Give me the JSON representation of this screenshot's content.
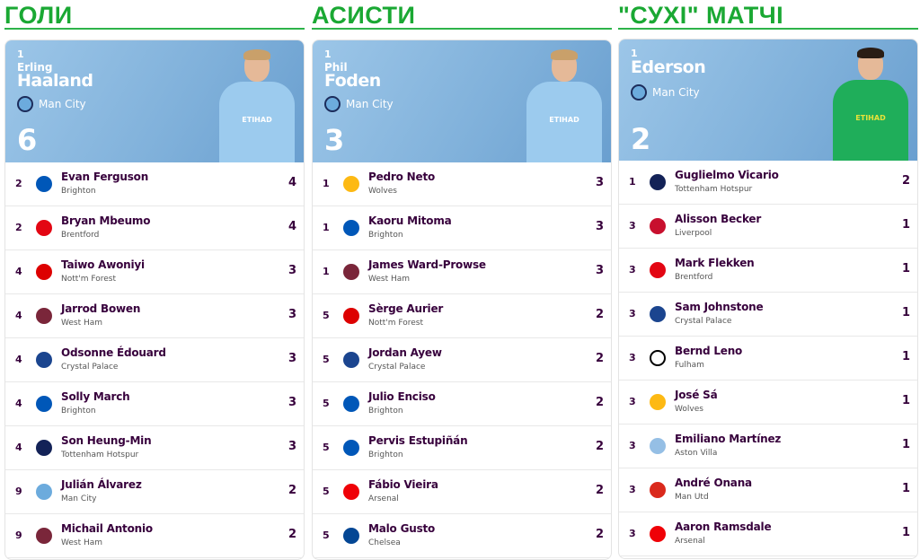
{
  "colors": {
    "title": "#1aa833",
    "hero": "#7fb0da",
    "text": "#37003c"
  },
  "panels": [
    {
      "title": "ГОЛИ",
      "leader": {
        "rank": "1",
        "first": "Erling",
        "last": "Haaland",
        "club": "Man City",
        "value": "6",
        "kit": "#9ccbee",
        "kit_text": "ETIHAD"
      },
      "rows": [
        {
          "rank": "2",
          "name": "Evan Ferguson",
          "club": "Brighton",
          "value": "4",
          "badge": "#0057b8"
        },
        {
          "rank": "2",
          "name": "Bryan Mbeumo",
          "club": "Brentford",
          "value": "4",
          "badge": "#e30613"
        },
        {
          "rank": "4",
          "name": "Taiwo Awoniyi",
          "club": "Nott'm Forest",
          "value": "3",
          "badge": "#dd0000"
        },
        {
          "rank": "4",
          "name": "Jarrod Bowen",
          "club": "West Ham",
          "value": "3",
          "badge": "#7a263a"
        },
        {
          "rank": "4",
          "name": "Odsonne Édouard",
          "club": "Crystal Palace",
          "value": "3",
          "badge": "#1b458f"
        },
        {
          "rank": "4",
          "name": "Solly March",
          "club": "Brighton",
          "value": "3",
          "badge": "#0057b8"
        },
        {
          "rank": "4",
          "name": "Son Heung-Min",
          "club": "Tottenham Hotspur",
          "value": "3",
          "badge": "#132257"
        },
        {
          "rank": "9",
          "name": "Julián Álvarez",
          "club": "Man City",
          "value": "2",
          "badge": "#6cabdd"
        },
        {
          "rank": "9",
          "name": "Michail Antonio",
          "club": "West Ham",
          "value": "2",
          "badge": "#7a263a"
        }
      ]
    },
    {
      "title": "АСИСТИ",
      "leader": {
        "rank": "1",
        "first": "Phil",
        "last": "Foden",
        "club": "Man City",
        "value": "3",
        "kit": "#9ccbee",
        "kit_text": "ETIHAD"
      },
      "rows": [
        {
          "rank": "1",
          "name": "Pedro Neto",
          "club": "Wolves",
          "value": "3",
          "badge": "#fdb913"
        },
        {
          "rank": "1",
          "name": "Kaoru Mitoma",
          "club": "Brighton",
          "value": "3",
          "badge": "#0057b8"
        },
        {
          "rank": "1",
          "name": "James Ward-Prowse",
          "club": "West Ham",
          "value": "3",
          "badge": "#7a263a"
        },
        {
          "rank": "5",
          "name": "Sèrge Aurier",
          "club": "Nott'm Forest",
          "value": "2",
          "badge": "#dd0000"
        },
        {
          "rank": "5",
          "name": "Jordan Ayew",
          "club": "Crystal Palace",
          "value": "2",
          "badge": "#1b458f"
        },
        {
          "rank": "5",
          "name": "Julio Enciso",
          "club": "Brighton",
          "value": "2",
          "badge": "#0057b8"
        },
        {
          "rank": "5",
          "name": "Pervis Estupiñán",
          "club": "Brighton",
          "value": "2",
          "badge": "#0057b8"
        },
        {
          "rank": "5",
          "name": "Fábio Vieira",
          "club": "Arsenal",
          "value": "2",
          "badge": "#ef0107"
        },
        {
          "rank": "5",
          "name": "Malo Gusto",
          "club": "Chelsea",
          "value": "2",
          "badge": "#034694"
        }
      ]
    },
    {
      "title": "\"СУХІ\" МАТЧІ",
      "leader": {
        "rank": "1",
        "first": "",
        "last": "Ederson",
        "club": "Man City",
        "value": "2",
        "kit": "#1fae5a",
        "kit_text": "ETIHAD"
      },
      "rows": [
        {
          "rank": "1",
          "name": "Guglielmo Vicario",
          "club": "Tottenham Hotspur",
          "value": "2",
          "badge": "#132257"
        },
        {
          "rank": "3",
          "name": "Alisson Becker",
          "club": "Liverpool",
          "value": "1",
          "badge": "#c8102e"
        },
        {
          "rank": "3",
          "name": "Mark Flekken",
          "club": "Brentford",
          "value": "1",
          "badge": "#e30613"
        },
        {
          "rank": "3",
          "name": "Sam Johnstone",
          "club": "Crystal Palace",
          "value": "1",
          "badge": "#1b458f"
        },
        {
          "rank": "3",
          "name": "Bernd Leno",
          "club": "Fulham",
          "value": "1",
          "badge": "#000000"
        },
        {
          "rank": "3",
          "name": "José Sá",
          "club": "Wolves",
          "value": "1",
          "badge": "#fdb913"
        },
        {
          "rank": "3",
          "name": "Emiliano Martínez",
          "club": "Aston Villa",
          "value": "1",
          "badge": "#95bfe5"
        },
        {
          "rank": "3",
          "name": "André Onana",
          "club": "Man Utd",
          "value": "1",
          "badge": "#da291c"
        },
        {
          "rank": "3",
          "name": "Aaron Ramsdale",
          "club": "Arsenal",
          "value": "1",
          "badge": "#ef0107"
        }
      ]
    }
  ]
}
